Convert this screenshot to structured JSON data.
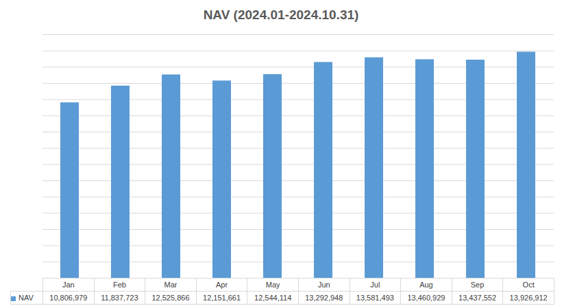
{
  "chart_data": {
    "type": "bar",
    "title": "NAV (2024.01-2024.10.31)",
    "categories": [
      "Jan",
      "Feb",
      "Mar",
      "Apr",
      "May",
      "Jun",
      "Jul",
      "Aug",
      "Sep",
      "Oct"
    ],
    "series": [
      {
        "name": "NAV",
        "color": "#5b9bd5",
        "values": [
          10806979,
          11837723,
          12525866,
          12151661,
          12544114,
          13292948,
          13581493,
          13460929,
          13437552,
          13926912
        ],
        "value_labels": [
          "10,806,979",
          "11,837,723",
          "12,525,866",
          "12,151,661",
          "12,544,114",
          "13,292,948",
          "13,581,493",
          "13,460,929",
          "13,437,552",
          "13,926,912"
        ]
      }
    ],
    "ylim": [
      0,
      15000000
    ],
    "yticks": [
      0,
      1000000,
      2000000,
      3000000,
      4000000,
      5000000,
      6000000,
      7000000,
      8000000,
      9000000,
      10000000,
      11000000,
      12000000,
      13000000,
      14000000,
      15000000
    ],
    "grid": true,
    "legend": "bottom",
    "tick_labels": "x"
  }
}
